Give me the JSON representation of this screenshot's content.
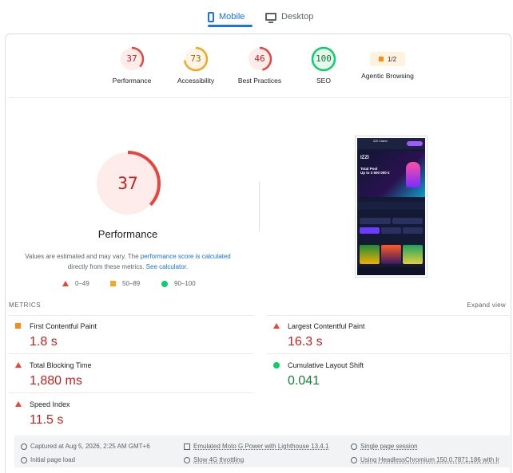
{
  "device_tabs": {
    "mobile_label": "Mobile",
    "desktop_label": "Desktop"
  },
  "categories": [
    {
      "name": "Performance",
      "score": "37",
      "color": "#e8453c",
      "bg": "#fdecea",
      "fraction": 0.37
    },
    {
      "name": "Accessibility",
      "score": "73",
      "color": "#f5a623",
      "bg": "#fff5e6",
      "fraction": 0.73
    },
    {
      "name": "Best Practices",
      "score": "46",
      "color": "#e8453c",
      "bg": "#fdecea",
      "fraction": 0.46
    },
    {
      "name": "SEO",
      "score": "100",
      "color": "#0cce6b",
      "bg": "#e6f8ee",
      "fraction": 1.0
    },
    {
      "name": "Agentic Browsing",
      "score": "1/2"
    }
  ],
  "performance": {
    "score": "37",
    "fraction": 0.37,
    "title": "Performance",
    "desc_prefix": "Values are estimated and may vary. The ",
    "desc_link1": "performance score is calculated",
    "desc_mid": "directly from these metrics. ",
    "desc_link2": "See calculator."
  },
  "legend": {
    "fail": "0–49",
    "average": "50–89",
    "pass": "90–100"
  },
  "screenshot": {
    "site_title": "IZZI Casino",
    "logo": "IZZI",
    "banner_text_line1": "Total Pool",
    "banner_text_line2": "Up to 3 500 000 €"
  },
  "metrics": {
    "header": "METRICS",
    "expand_label": "Expand view",
    "items": [
      {
        "name": "First Contentful Paint",
        "value": "1.8 s",
        "status": "average"
      },
      {
        "name": "Largest Contentful Paint",
        "value": "16.3 s",
        "status": "fail"
      },
      {
        "name": "Total Blocking Time",
        "value": "1,880 ms",
        "status": "fail"
      },
      {
        "name": "Cumulative Layout Shift",
        "value": "0.041",
        "status": "pass"
      },
      {
        "name": "Speed Index",
        "value": "11.5 s",
        "status": "fail"
      }
    ]
  },
  "footer": {
    "captured": "Captured at Aug 5, 2026, 2:25 AM GMT+6",
    "initial_load": "Initial page load",
    "device": "Emulated Moto G Power with Lighthouse 13.4.1",
    "throttling": "Slow 4G throttling",
    "session": "Single page session",
    "browser": "Using HeadlessChromium 150.0.7871.186 with lr"
  }
}
